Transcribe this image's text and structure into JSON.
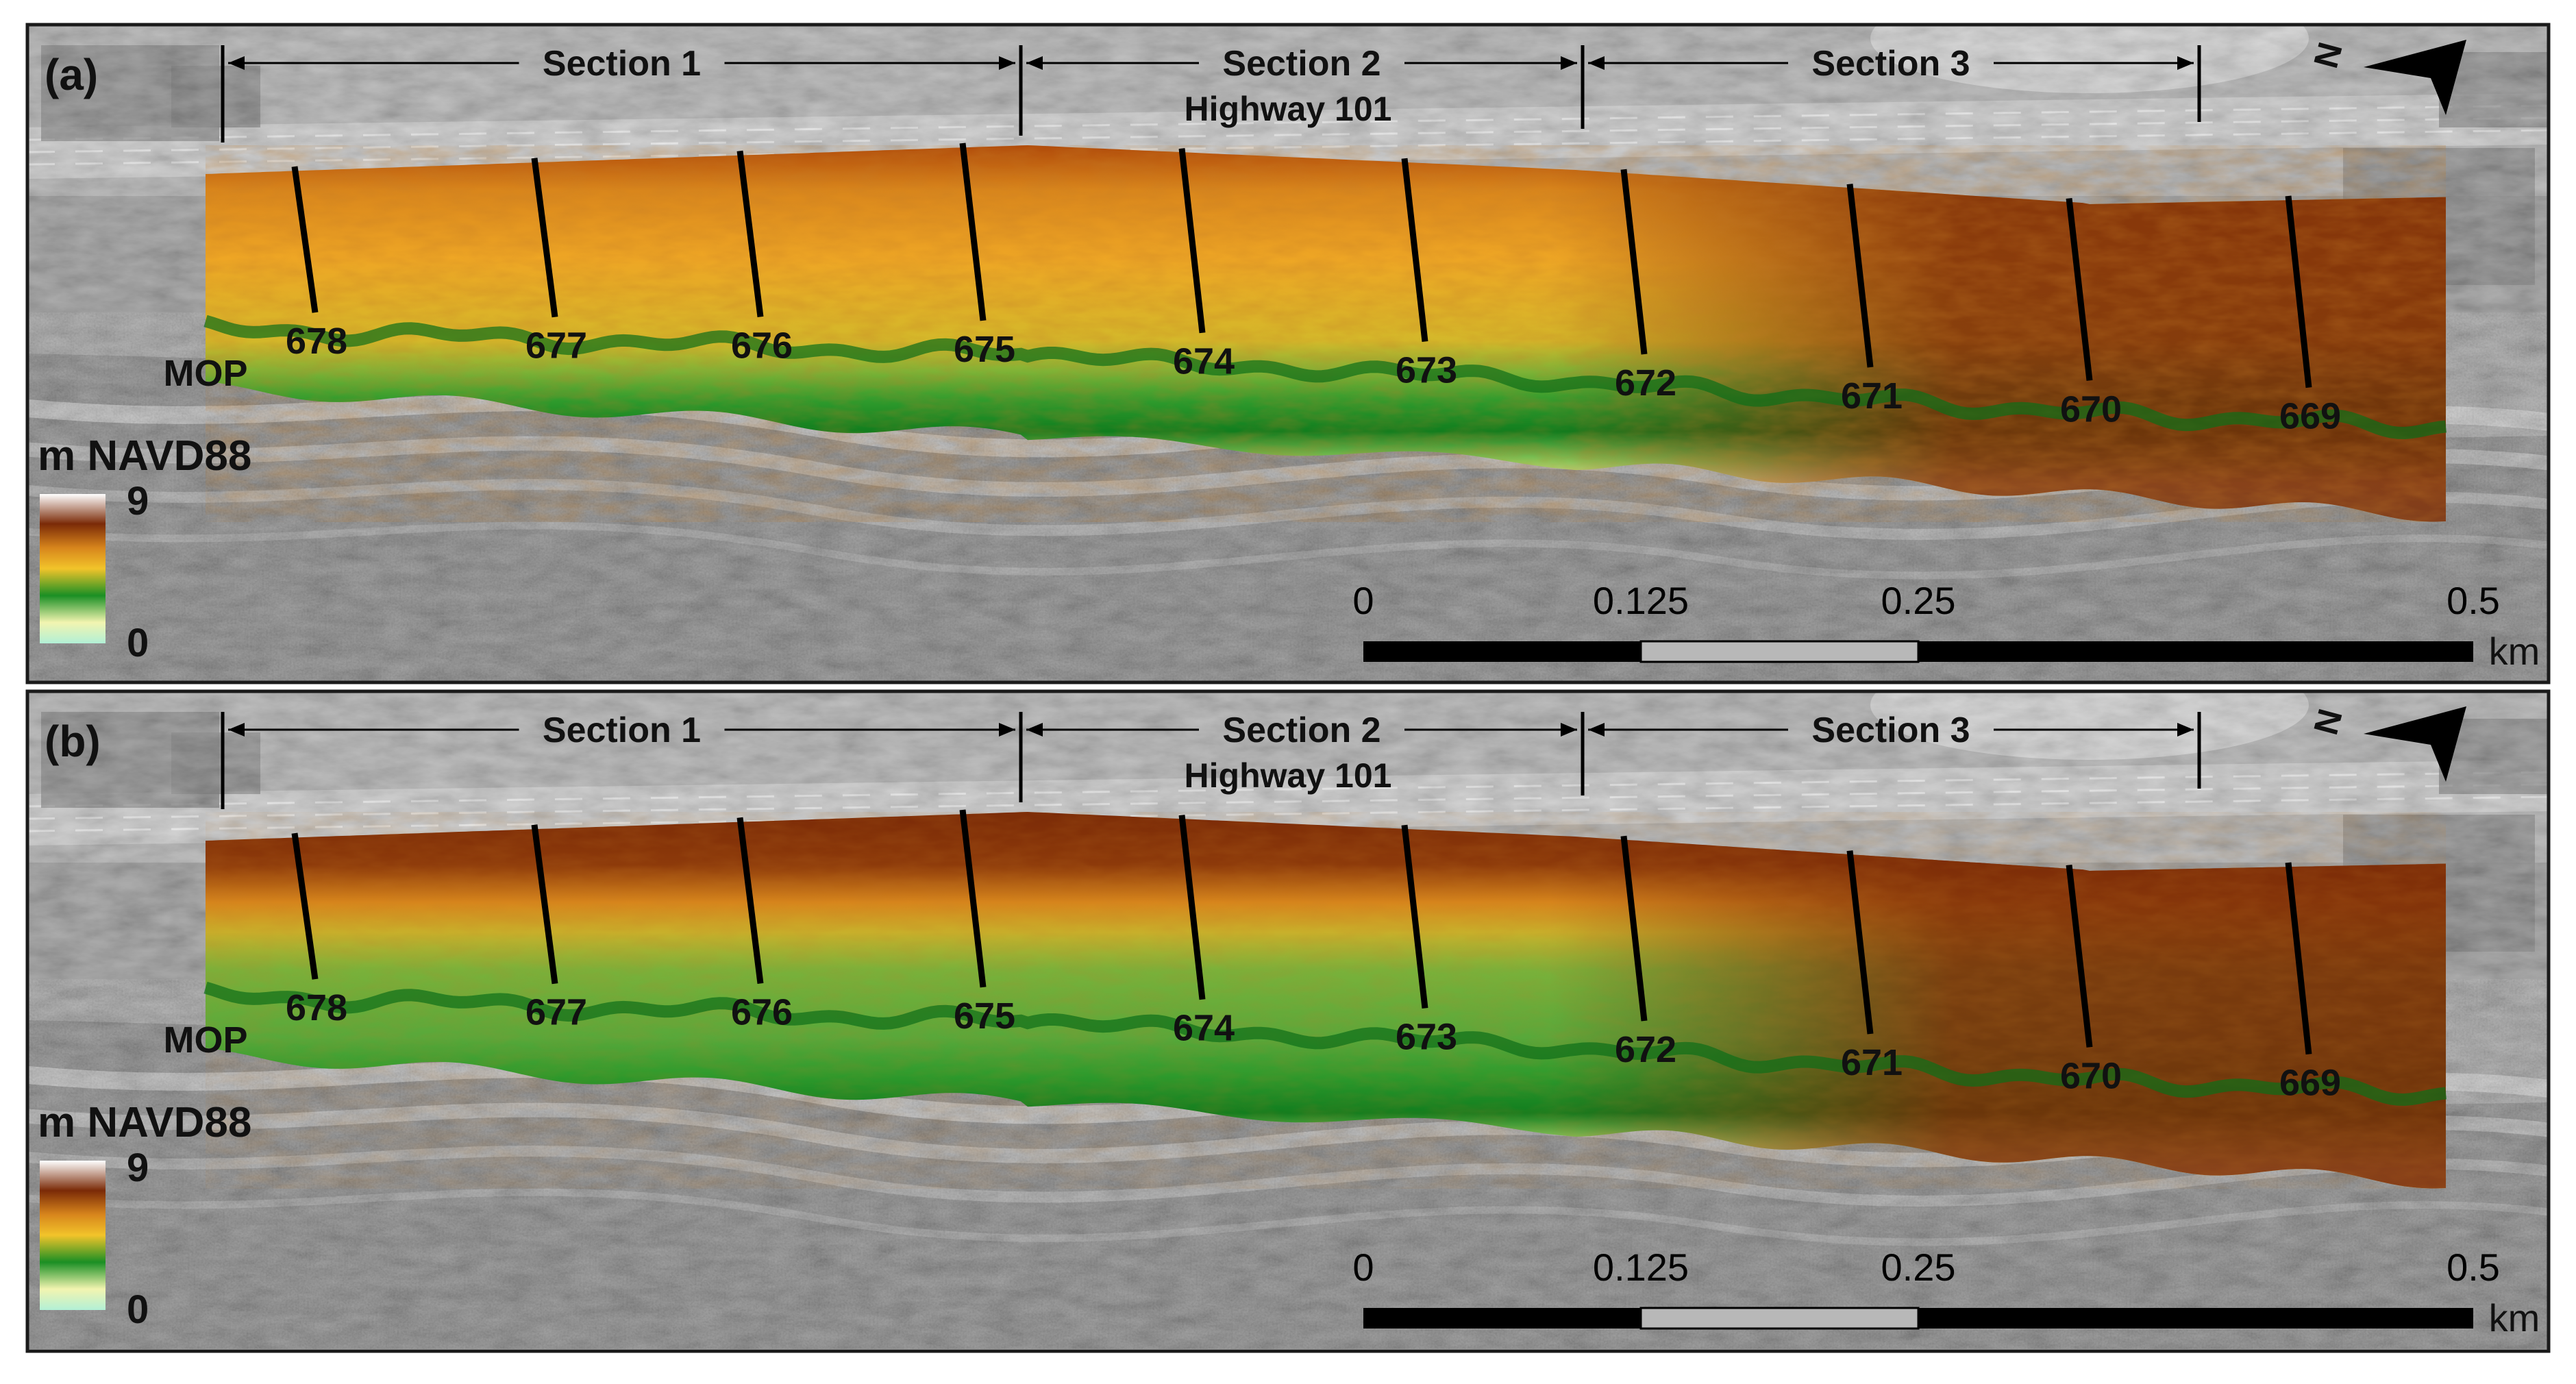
{
  "colors": {
    "frame": "#1a1a1a",
    "ink": "#111111",
    "ramp": [
      "#b2f0d6",
      "#f2f4b0",
      "#1a8f24",
      "#f2c42a",
      "#d7851c",
      "#7a2a07",
      "#ffffff"
    ]
  },
  "panels": [
    {
      "label": "(a)",
      "sections": [
        "Section 1",
        "Section 2",
        "Section 3"
      ],
      "road_label": "Highway 101",
      "mop_prefix": "MOP",
      "mops": [
        "678",
        "677",
        "676",
        "675",
        "674",
        "673",
        "672",
        "671",
        "670",
        "669"
      ],
      "legend": {
        "title": "m NAVD88",
        "max": "9",
        "min": "0"
      },
      "scalebar": {
        "ticks": [
          "0",
          "0.125",
          "0.25",
          "0.5"
        ],
        "unit": "km"
      },
      "north": "N",
      "surface": "eroded"
    },
    {
      "label": "(b)",
      "sections": [
        "Section 1",
        "Section 2",
        "Section 3"
      ],
      "road_label": "Highway 101",
      "mop_prefix": "MOP",
      "mops": [
        "678",
        "677",
        "676",
        "675",
        "674",
        "673",
        "672",
        "671",
        "670",
        "669"
      ],
      "legend": {
        "title": "m NAVD88",
        "max": "9",
        "min": "0"
      },
      "scalebar": {
        "ticks": [
          "0",
          "0.125",
          "0.25",
          "0.5"
        ],
        "unit": "km"
      },
      "north": "N",
      "surface": "nourished"
    }
  ]
}
